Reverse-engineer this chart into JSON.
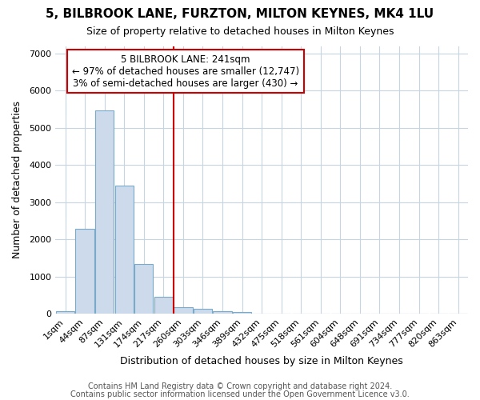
{
  "title1": "5, BILBROOK LANE, FURZTON, MILTON KEYNES, MK4 1LU",
  "title2": "Size of property relative to detached houses in Milton Keynes",
  "xlabel": "Distribution of detached houses by size in Milton Keynes",
  "ylabel": "Number of detached properties",
  "footer_line1": "Contains HM Land Registry data © Crown copyright and database right 2024.",
  "footer_line2": "Contains public sector information licensed under the Open Government Licence v3.0.",
  "categories": [
    "1sqm",
    "44sqm",
    "87sqm",
    "131sqm",
    "174sqm",
    "217sqm",
    "260sqm",
    "303sqm",
    "346sqm",
    "389sqm",
    "432sqm",
    "475sqm",
    "518sqm",
    "561sqm",
    "604sqm",
    "648sqm",
    "691sqm",
    "734sqm",
    "777sqm",
    "820sqm",
    "863sqm"
  ],
  "values": [
    75,
    2280,
    5460,
    3440,
    1330,
    460,
    185,
    135,
    75,
    55,
    5,
    0,
    0,
    0,
    0,
    0,
    0,
    0,
    0,
    0,
    0
  ],
  "bar_color": "#ccdaeb",
  "bar_edge_color": "#7aaaca",
  "vline_x": 5.5,
  "vline_color": "#cc0000",
  "annotation_line1": "5 BILBROOK LANE: 241sqm",
  "annotation_line2": "← 97% of detached houses are smaller (12,747)",
  "annotation_line3": "3% of semi-detached houses are larger (430) →",
  "ylim": [
    0,
    7200
  ],
  "yticks": [
    0,
    1000,
    2000,
    3000,
    4000,
    5000,
    6000,
    7000
  ],
  "background_color": "#ffffff",
  "plot_bg_color": "#ffffff",
  "grid_color": "#c8d4e0",
  "title1_fontsize": 11,
  "title2_fontsize": 9,
  "xlabel_fontsize": 9,
  "ylabel_fontsize": 9,
  "tick_fontsize": 8,
  "footer_fontsize": 7,
  "annotation_fontsize": 8.5
}
